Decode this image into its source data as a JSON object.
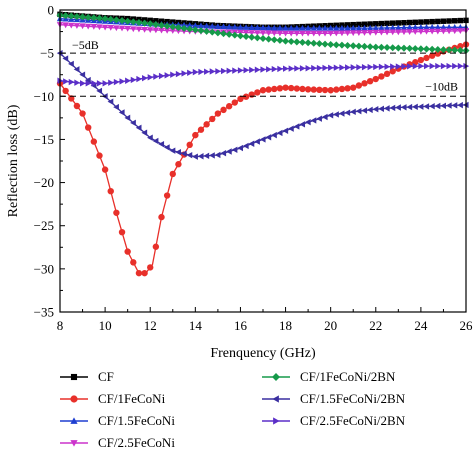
{
  "chart_data": {
    "type": "line",
    "xlabel": "Frenquency (GHz)",
    "ylabel": "Reflection loss (dB)",
    "xlim": [
      8,
      26
    ],
    "ylim": [
      -35,
      0
    ],
    "x_ticks": [
      8,
      10,
      12,
      14,
      16,
      18,
      20,
      22,
      24,
      26
    ],
    "y_ticks": [
      0,
      -5,
      -10,
      -15,
      -20,
      -25,
      -30,
      -35
    ],
    "grid": false,
    "legend_position": "below plot, two columns",
    "reference_lines": [
      {
        "y": -5,
        "label": "−5dB"
      },
      {
        "y": -10,
        "label": "−10dB"
      }
    ],
    "series": [
      {
        "name": "CF",
        "color": "#000000",
        "marker": "square",
        "x": [
          8,
          9,
          10,
          11,
          12,
          13,
          14,
          15,
          16,
          17,
          18,
          19,
          20,
          21,
          22,
          23,
          24,
          25,
          26
        ],
        "y": [
          -0.5,
          -0.7,
          -0.9,
          -1.0,
          -1.2,
          -1.4,
          -1.6,
          -1.8,
          -1.9,
          -2.0,
          -2.0,
          -1.9,
          -1.8,
          -1.7,
          -1.6,
          -1.5,
          -1.4,
          -1.3,
          -1.2
        ]
      },
      {
        "name": "CF/1FeCoNi",
        "color": "#e8302a",
        "marker": "circle",
        "x": [
          8,
          9,
          10,
          10.5,
          11,
          11.5,
          11.8,
          12.1,
          12.5,
          13,
          14,
          15,
          16,
          17,
          18,
          19,
          20,
          21,
          22,
          23,
          24,
          25,
          26
        ],
        "y": [
          -8.5,
          -12,
          -18.5,
          -23.5,
          -28,
          -30.5,
          -30.5,
          -29.5,
          -24,
          -19,
          -14.5,
          -12,
          -10.3,
          -9.3,
          -9.0,
          -9.2,
          -9.3,
          -9.0,
          -8.0,
          -6.8,
          -5.8,
          -4.8,
          -4.0
        ]
      },
      {
        "name": "CF/1.5FeCoNi",
        "color": "#1f3fd1",
        "marker": "triangle-up",
        "x": [
          8,
          10,
          12,
          14,
          16,
          18,
          20,
          22,
          24,
          26
        ],
        "y": [
          -1.0,
          -1.3,
          -1.6,
          -1.8,
          -2.0,
          -2.1,
          -2.1,
          -2.1,
          -2.0,
          -2.0
        ]
      },
      {
        "name": "CF/2.5FeCoNi",
        "color": "#cc33cc",
        "marker": "triangle-down",
        "x": [
          8,
          10,
          12,
          14,
          16,
          18,
          20,
          22,
          24,
          26
        ],
        "y": [
          -1.7,
          -2.0,
          -2.3,
          -2.5,
          -2.6,
          -2.7,
          -2.7,
          -2.6,
          -2.5,
          -2.4
        ]
      },
      {
        "name": "CF/1FeCoNi/2BN",
        "color": "#169a4a",
        "marker": "diamond",
        "x": [
          8,
          10,
          12,
          14,
          16,
          18,
          20,
          22,
          24,
          26
        ],
        "y": [
          -0.6,
          -1.0,
          -1.6,
          -2.3,
          -3.0,
          -3.6,
          -4.0,
          -4.3,
          -4.5,
          -4.7
        ]
      },
      {
        "name": "CF/1.5FeCoNi/2BN",
        "color": "#3a2fa0",
        "marker": "triangle-left",
        "x": [
          8,
          9,
          10,
          11,
          12,
          13,
          14,
          15,
          16,
          17,
          18,
          19,
          20,
          21,
          22,
          23,
          24,
          25,
          26
        ],
        "y": [
          -5.0,
          -7.5,
          -10.0,
          -12.5,
          -14.8,
          -16.3,
          -17.0,
          -16.8,
          -16.0,
          -15.0,
          -14.0,
          -13.0,
          -12.2,
          -11.8,
          -11.5,
          -11.3,
          -11.2,
          -11.1,
          -11.0
        ]
      },
      {
        "name": "CF/2.5FeCoNi/2BN",
        "color": "#5b2fc8",
        "marker": "triangle-right",
        "x": [
          8,
          9,
          10,
          11,
          12,
          13,
          14,
          16,
          18,
          20,
          22,
          24,
          26
        ],
        "y": [
          -8.2,
          -8.5,
          -8.5,
          -8.2,
          -7.8,
          -7.5,
          -7.2,
          -7.0,
          -6.8,
          -6.7,
          -6.6,
          -6.5,
          -6.5
        ]
      }
    ]
  }
}
